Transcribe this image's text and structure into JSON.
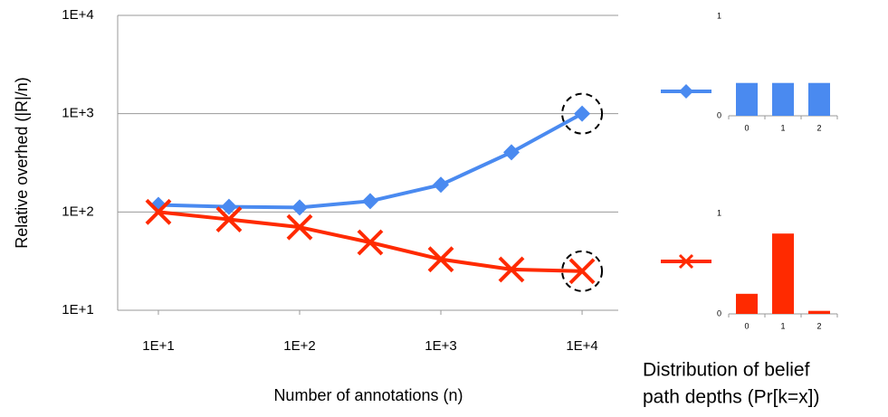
{
  "chart_data": [
    {
      "type": "line",
      "xlabel": "Number of annotations (n)",
      "ylabel": "Relative overhed (|R|/n)",
      "x": [
        10,
        31.6,
        100,
        316,
        1000,
        3160,
        10000
      ],
      "series": [
        {
          "color": "#4a8af0",
          "marker": "diamond",
          "values": [
            118,
            113,
            111,
            129,
            189,
            405,
            1000
          ]
        },
        {
          "color": "#ff2a00",
          "marker": "x",
          "values": [
            100,
            84,
            70,
            49,
            33,
            26,
            25
          ]
        }
      ],
      "xscale": "log",
      "yscale": "log",
      "xlim": [
        5.15,
        18030
      ],
      "ylim": [
        10,
        10000
      ],
      "xticks": [
        {
          "value": 10,
          "label": "1E+1"
        },
        {
          "value": 100,
          "label": "1E+2"
        },
        {
          "value": 1000,
          "label": "1E+3"
        },
        {
          "value": 10000,
          "label": "1E+4"
        }
      ],
      "yticks": [
        {
          "value": 10,
          "label": "1E+1"
        },
        {
          "value": 100,
          "label": "1E+2"
        },
        {
          "value": 1000,
          "label": "1E+3"
        },
        {
          "value": 10000,
          "label": "1E+4"
        }
      ],
      "grid": true
    },
    {
      "type": "bar",
      "categories": [
        "0",
        "1",
        "2"
      ],
      "values": [
        0.33,
        0.33,
        0.33
      ],
      "color": "#4a8af0",
      "ylim": [
        0,
        1
      ],
      "yticks": [
        0,
        1
      ]
    },
    {
      "type": "bar",
      "categories": [
        "0",
        "1",
        "2"
      ],
      "values": [
        0.2,
        0.8,
        0.03
      ],
      "color": "#ff2a00",
      "ylim": [
        0,
        1
      ],
      "yticks": [
        0,
        1
      ]
    }
  ],
  "caption": [
    "Distribution of belief",
    "path depths (Pr[k=x])"
  ]
}
